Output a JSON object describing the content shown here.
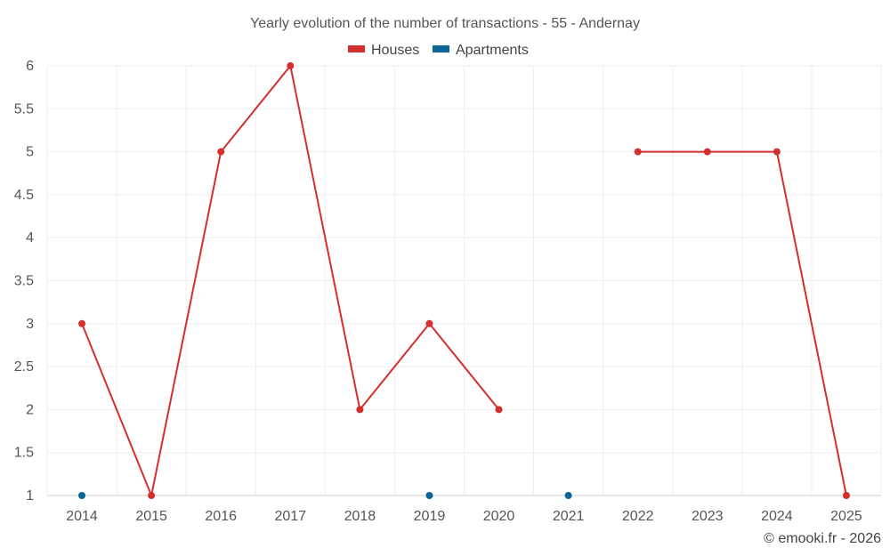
{
  "chart_data": {
    "type": "line",
    "title": "Yearly evolution of the number of transactions - 55 - Andernay",
    "categories": [
      "2014",
      "2015",
      "2016",
      "2017",
      "2018",
      "2019",
      "2020",
      "2021",
      "2022",
      "2023",
      "2024",
      "2025"
    ],
    "series": [
      {
        "name": "Houses",
        "color": "#d32f2f",
        "values": [
          3,
          1,
          5,
          6,
          2,
          3,
          2,
          null,
          5,
          5,
          5,
          1
        ]
      },
      {
        "name": "Apartments",
        "color": "#0b6697",
        "values": [
          1,
          null,
          null,
          null,
          null,
          1,
          null,
          1,
          null,
          null,
          null,
          null
        ]
      }
    ],
    "ylim": [
      1,
      6
    ],
    "yticks": [
      "1",
      "1.5",
      "2",
      "2.5",
      "3",
      "3.5",
      "4",
      "4.5",
      "5",
      "5.5",
      "6"
    ],
    "xlabel": "",
    "ylabel": "",
    "grid": true,
    "legend_position": "top-center"
  },
  "credit": "© emooki.fr - 2026"
}
